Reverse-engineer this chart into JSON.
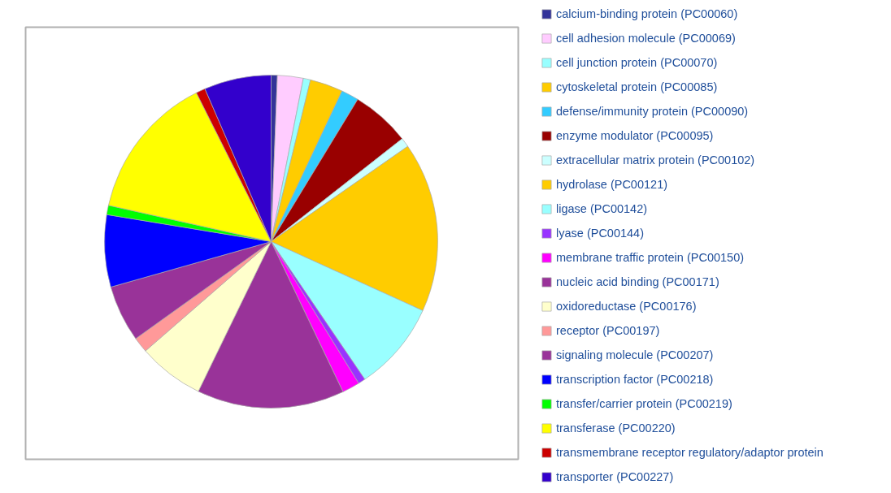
{
  "chart_data": {
    "type": "pie",
    "legend": "right",
    "categories": [
      "calcium-binding protein (PC00060)",
      "cell adhesion molecule (PC00069)",
      "cell junction protein (PC00070)",
      "cytoskeletal protein (PC00085)",
      "defense/immunity protein (PC00090)",
      "enzyme modulator (PC00095)",
      "extracellular matrix protein (PC00102)",
      "hydrolase (PC00121)",
      "ligase (PC00142)",
      "lyase (PC00144)",
      "membrane traffic protein (PC00150)",
      "nucleic acid binding (PC00171)",
      "oxidoreductase (PC00176)",
      "receptor (PC00197)",
      "signaling molecule (PC00207)",
      "transcription factor (PC00218)",
      "transfer/carrier protein (PC00219)",
      "transferase (PC00220)",
      "transmembrane receptor regulatory/adaptor protein",
      "transporter (PC00227)"
    ],
    "values": [
      0.6,
      2.5,
      0.7,
      3.2,
      1.7,
      5.7,
      0.9,
      16.5,
      8.7,
      0.7,
      1.7,
      14.3,
      6.4,
      1.5,
      5.5,
      7.0,
      0.9,
      14.1,
      0.9,
      6.5
    ],
    "colors": [
      "#333399",
      "#ffccff",
      "#99ffff",
      "#ffcc00",
      "#33ccff",
      "#990000",
      "#ccffff",
      "#ffcc00",
      "#99ffff",
      "#9933ff",
      "#ff00ff",
      "#993399",
      "#ffffcc",
      "#ff9999",
      "#993399",
      "#0000ff",
      "#00ff00",
      "#ffff00",
      "#cc0000",
      "#3300cc"
    ]
  }
}
